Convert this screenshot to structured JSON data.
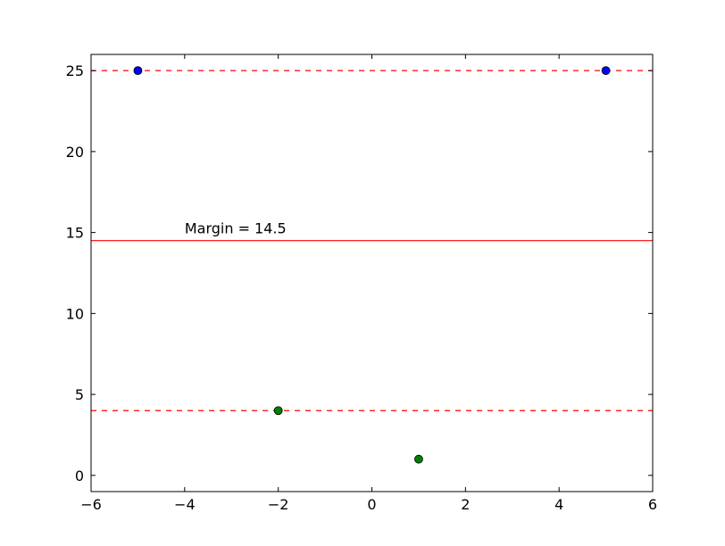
{
  "chart_data": {
    "type": "scatter",
    "title": "",
    "xlabel": "",
    "ylabel": "",
    "xlim": [
      -6,
      6
    ],
    "ylim": [
      -1,
      26
    ],
    "grid": false,
    "x_ticks": [
      -6,
      -4,
      -2,
      0,
      2,
      4,
      6
    ],
    "x_tick_labels": [
      "−6",
      "−4",
      "−2",
      "0",
      "2",
      "4",
      "6"
    ],
    "y_ticks": [
      0,
      5,
      10,
      15,
      20,
      25
    ],
    "y_tick_labels": [
      "0",
      "5",
      "10",
      "15",
      "20",
      "25"
    ],
    "points": [
      {
        "x": -5,
        "y": 25,
        "color": "#0000ff"
      },
      {
        "x": 5,
        "y": 25,
        "color": "#0000ff"
      },
      {
        "x": -2,
        "y": 4,
        "color": "#008000"
      },
      {
        "x": 1,
        "y": 1,
        "color": "#008000"
      }
    ],
    "lines": [
      {
        "y": 25,
        "style": "dashed",
        "color": "#ff0000"
      },
      {
        "y": 14.5,
        "style": "solid",
        "color": "#ff0000"
      },
      {
        "y": 4,
        "style": "dashed",
        "color": "#ff0000"
      }
    ],
    "annotation": {
      "text": "Margin = 14.5",
      "x": -4,
      "y": 14.5
    }
  }
}
